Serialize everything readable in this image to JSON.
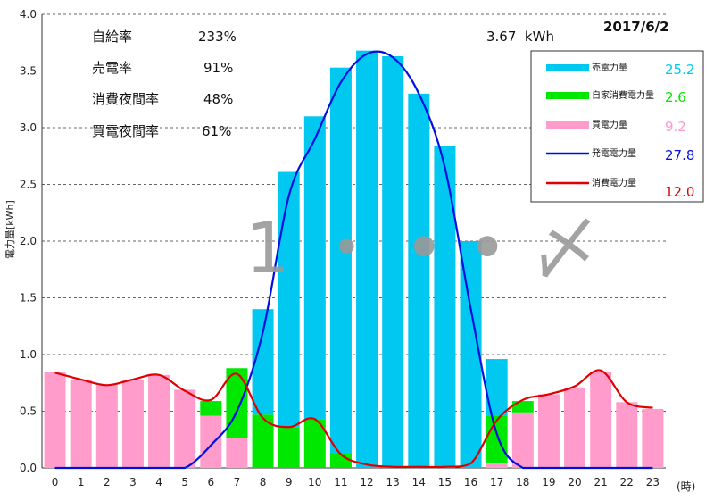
{
  "chart_data": {
    "type": "bar",
    "date": "2017/6/2",
    "stats": [
      {
        "label": "自給率",
        "value": "233%"
      },
      {
        "label": "売電率",
        "value": "91%"
      },
      {
        "label": "消費夜間率",
        "value": "48%"
      },
      {
        "label": "買電夜間率",
        "value": "61%"
      }
    ],
    "peak_label": "3.67  kWh",
    "watermark": "1 ・ • • 〆",
    "ylabel": "電力量[kWh]",
    "xlabel": "(時)",
    "ylim": [
      0,
      4
    ],
    "yticks": [
      "0.0",
      "0.5",
      "1.0",
      "1.5",
      "2.0",
      "2.5",
      "3.0",
      "3.5",
      "4.0"
    ],
    "categories": [
      "0",
      "1",
      "2",
      "3",
      "4",
      "5",
      "6",
      "7",
      "8",
      "9",
      "10",
      "11",
      "12",
      "13",
      "14",
      "15",
      "16",
      "17",
      "18",
      "19",
      "20",
      "21",
      "22",
      "23"
    ],
    "colors": {
      "sell": "#00c8f0",
      "self": "#00e800",
      "buy": "#ff9ccc",
      "gen": "#0010e0",
      "cons": "#e00000"
    },
    "series": [
      {
        "name": "売電力量",
        "key": "sell",
        "total": "25.2",
        "values": [
          0,
          0,
          0,
          0,
          0,
          0,
          0,
          0,
          0.93,
          2.25,
          2.67,
          3.4,
          3.68,
          3.63,
          3.3,
          2.84,
          2.0,
          0.5,
          0,
          0,
          0,
          0,
          0,
          0
        ]
      },
      {
        "name": "自家消費電力量",
        "key": "self",
        "total": "2.6",
        "values": [
          0,
          0,
          0,
          0,
          0,
          0,
          0.13,
          0.62,
          0.47,
          0.36,
          0.43,
          0.13,
          0,
          0,
          0,
          0,
          0,
          0.42,
          0.1,
          0,
          0,
          0,
          0,
          0
        ]
      },
      {
        "name": "買電力量",
        "key": "buy",
        "total": "9.2",
        "values": [
          0.85,
          0.78,
          0.73,
          0.78,
          0.82,
          0.69,
          0.46,
          0.26,
          0,
          0,
          0,
          0,
          0,
          0,
          0,
          0,
          0,
          0.04,
          0.49,
          0.65,
          0.71,
          0.85,
          0.58,
          0.52
        ]
      },
      {
        "name": "発電電力量",
        "key": "gen",
        "total": "27.8",
        "values": [
          0,
          0,
          0,
          0,
          0,
          0,
          0.2,
          0.5,
          1.2,
          2.4,
          2.9,
          3.4,
          3.65,
          3.62,
          3.3,
          2.65,
          1.4,
          0.3,
          0,
          0,
          0,
          0,
          0,
          0
        ]
      },
      {
        "name": "消費電力量",
        "key": "cons",
        "total": "12.0",
        "values": [
          0.84,
          0.78,
          0.73,
          0.78,
          0.82,
          0.68,
          0.6,
          0.83,
          0.44,
          0.36,
          0.43,
          0.12,
          0.03,
          0.01,
          0.01,
          0.01,
          0.04,
          0.42,
          0.6,
          0.65,
          0.72,
          0.86,
          0.58,
          0.53
        ]
      }
    ]
  }
}
